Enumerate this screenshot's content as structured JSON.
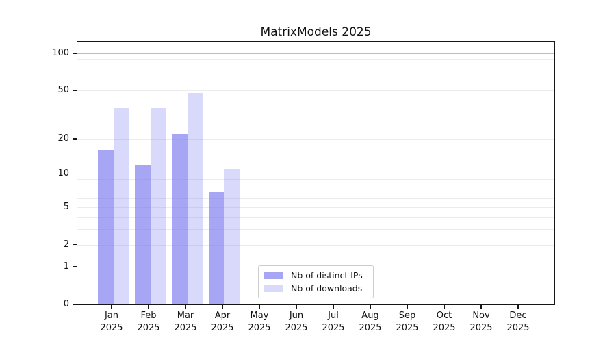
{
  "chart_data": {
    "type": "bar",
    "title": "MatrixModels 2025",
    "categories": [
      "Jan",
      "Feb",
      "Mar",
      "Apr",
      "May",
      "Jun",
      "Jul",
      "Aug",
      "Sep",
      "Oct",
      "Nov",
      "Dec"
    ],
    "category_year": "2025",
    "series": [
      {
        "name": "Nb of distinct IPs",
        "color": "rgba(118,118,240,0.65)",
        "values": [
          16,
          12,
          22,
          7,
          0,
          0,
          0,
          0,
          0,
          0,
          0,
          0
        ]
      },
      {
        "name": "Nb of downloads",
        "color": "rgba(118,118,240,0.28)",
        "values": [
          36,
          36,
          48,
          11,
          0,
          0,
          0,
          0,
          0,
          0,
          0,
          0
        ]
      }
    ],
    "yscale": "log1p",
    "ylim": [
      0,
      124
    ],
    "yticks": [
      "0",
      "1",
      "2",
      "5",
      "10",
      "20",
      "50",
      "100"
    ],
    "ytick_values": [
      0,
      1,
      2,
      5,
      10,
      20,
      50,
      100
    ],
    "major_gridline_values": [
      1,
      10,
      100
    ],
    "minor_gridline_values": [
      2,
      3,
      4,
      5,
      6,
      7,
      8,
      9,
      20,
      30,
      40,
      50,
      60,
      70,
      80,
      90
    ],
    "grid": true,
    "legend_position": "lower center",
    "colors": {
      "distinct_ips": "#a8a8f2",
      "downloads": "#d8d8f8",
      "major_grid": "#bdbdbd",
      "minor_grid": "#ececec",
      "spine": "#161616"
    }
  }
}
